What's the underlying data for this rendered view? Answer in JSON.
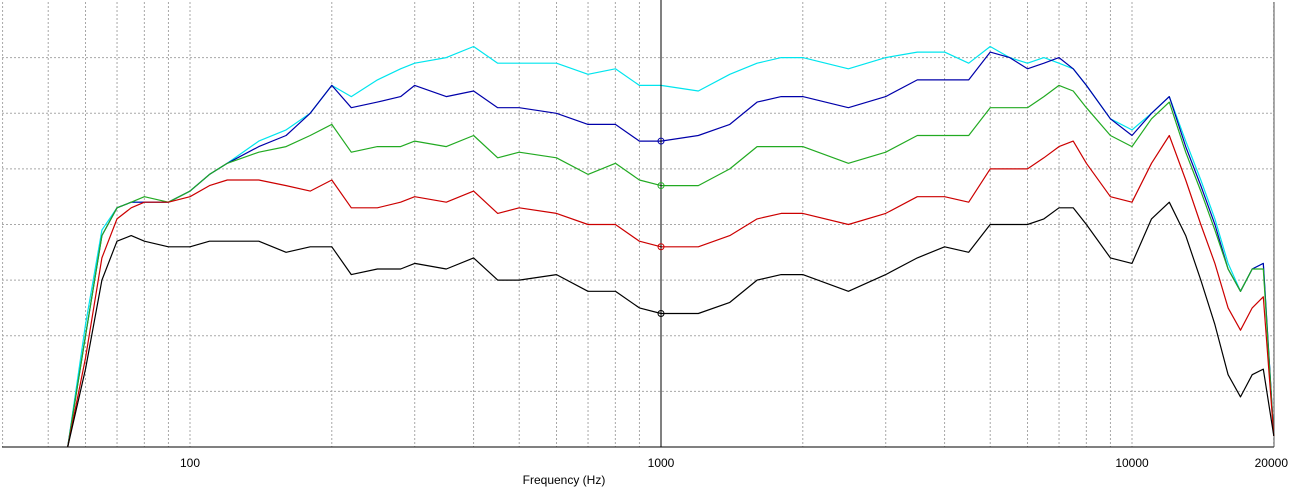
{
  "chart_data": {
    "type": "line",
    "title": "",
    "xlabel": "Frequency (Hz)",
    "ylabel": "",
    "x_scale": "log",
    "xlim": [
      40,
      20000
    ],
    "ylim": [
      0,
      8
    ],
    "grid": true,
    "cursor_x": 1000,
    "x_tick_labels": [
      {
        "value": 100,
        "label": "100"
      },
      {
        "value": 1000,
        "label": "1000"
      },
      {
        "value": 10000,
        "label": "10000"
      },
      {
        "value": 20000,
        "label": "20000"
      }
    ],
    "series": [
      {
        "color": "#00e5ee",
        "cursor_marker": false,
        "x": [
          55,
          60,
          65,
          70,
          75,
          80,
          90,
          100,
          110,
          120,
          140,
          160,
          180,
          200,
          220,
          250,
          280,
          300,
          350,
          400,
          450,
          500,
          600,
          700,
          800,
          900,
          1000,
          1200,
          1400,
          1600,
          1800,
          2000,
          2500,
          3000,
          3500,
          4000,
          4500,
          5000,
          5500,
          6000,
          6500,
          7000,
          7500,
          8000,
          9000,
          10000,
          11000,
          12000,
          13000,
          14000,
          15000,
          16000,
          17000,
          18000,
          19000,
          20000
        ],
        "values": [
          -0.3,
          2.2,
          3.9,
          4.3,
          4.4,
          4.4,
          4.4,
          4.6,
          4.9,
          5.1,
          5.5,
          5.7,
          6.0,
          6.5,
          6.3,
          6.6,
          6.8,
          6.9,
          7.0,
          7.2,
          6.9,
          6.9,
          6.9,
          6.7,
          6.8,
          6.5,
          6.5,
          6.4,
          6.7,
          6.9,
          7.0,
          7.0,
          6.8,
          7.0,
          7.1,
          7.1,
          6.9,
          7.2,
          7.0,
          6.9,
          7.0,
          6.9,
          6.8,
          6.5,
          5.9,
          5.7,
          6.0,
          6.3,
          5.5,
          4.8,
          4.1,
          3.3,
          2.8,
          3.2,
          3.3,
          0.2
        ]
      },
      {
        "color": "#0000aa",
        "cursor_marker": true,
        "x": [
          55,
          60,
          65,
          70,
          75,
          80,
          90,
          100,
          110,
          120,
          140,
          160,
          180,
          200,
          220,
          250,
          280,
          300,
          350,
          400,
          450,
          500,
          600,
          700,
          800,
          900,
          1000,
          1200,
          1400,
          1600,
          1800,
          2000,
          2500,
          3000,
          3500,
          4000,
          4500,
          5000,
          5500,
          6000,
          6500,
          7000,
          7500,
          8000,
          9000,
          10000,
          11000,
          12000,
          13000,
          14000,
          15000,
          16000,
          17000,
          18000,
          19000,
          20000
        ],
        "values": [
          -0.2,
          2.0,
          3.8,
          4.3,
          4.4,
          4.4,
          4.4,
          4.6,
          4.9,
          5.1,
          5.4,
          5.6,
          6.0,
          6.5,
          6.1,
          6.2,
          6.3,
          6.5,
          6.3,
          6.4,
          6.1,
          6.1,
          6.0,
          5.8,
          5.8,
          5.5,
          5.5,
          5.6,
          5.8,
          6.2,
          6.3,
          6.3,
          6.1,
          6.3,
          6.6,
          6.6,
          6.6,
          7.1,
          7.0,
          6.8,
          6.9,
          7.0,
          6.8,
          6.5,
          5.9,
          5.6,
          6.0,
          6.3,
          5.4,
          4.7,
          4.0,
          3.2,
          2.8,
          3.2,
          3.3,
          0.2
        ]
      },
      {
        "color": "#22aa22",
        "cursor_marker": true,
        "x": [
          55,
          60,
          65,
          70,
          75,
          80,
          90,
          100,
          110,
          120,
          140,
          160,
          180,
          200,
          220,
          250,
          280,
          300,
          350,
          400,
          450,
          500,
          600,
          700,
          800,
          900,
          1000,
          1200,
          1400,
          1600,
          1800,
          2000,
          2500,
          3000,
          3500,
          4000,
          4500,
          5000,
          5500,
          6000,
          6500,
          7000,
          7500,
          8000,
          9000,
          10000,
          11000,
          12000,
          13000,
          14000,
          15000,
          16000,
          17000,
          18000,
          19000,
          20000
        ],
        "values": [
          -0.2,
          2.0,
          3.8,
          4.3,
          4.4,
          4.5,
          4.4,
          4.6,
          4.9,
          5.1,
          5.3,
          5.4,
          5.6,
          5.8,
          5.3,
          5.4,
          5.4,
          5.5,
          5.4,
          5.6,
          5.2,
          5.3,
          5.2,
          4.9,
          5.1,
          4.8,
          4.7,
          4.7,
          5.0,
          5.4,
          5.4,
          5.4,
          5.1,
          5.3,
          5.6,
          5.6,
          5.6,
          6.1,
          6.1,
          6.1,
          6.3,
          6.5,
          6.4,
          6.1,
          5.6,
          5.4,
          5.9,
          6.2,
          5.3,
          4.6,
          3.9,
          3.2,
          2.8,
          3.2,
          3.2,
          0.2
        ]
      },
      {
        "color": "#cc0000",
        "cursor_marker": true,
        "x": [
          55,
          60,
          65,
          70,
          75,
          80,
          90,
          100,
          110,
          120,
          140,
          160,
          180,
          200,
          220,
          250,
          280,
          300,
          350,
          400,
          450,
          500,
          600,
          700,
          800,
          900,
          1000,
          1200,
          1400,
          1600,
          1800,
          2000,
          2500,
          3000,
          3500,
          4000,
          4500,
          5000,
          5500,
          6000,
          6500,
          7000,
          7500,
          8000,
          9000,
          10000,
          11000,
          12000,
          13000,
          14000,
          15000,
          16000,
          17000,
          18000,
          19000,
          20000
        ],
        "values": [
          -0.5,
          1.6,
          3.4,
          4.1,
          4.3,
          4.4,
          4.4,
          4.5,
          4.7,
          4.8,
          4.8,
          4.7,
          4.6,
          4.8,
          4.3,
          4.3,
          4.4,
          4.5,
          4.4,
          4.6,
          4.2,
          4.3,
          4.2,
          4.0,
          4.0,
          3.7,
          3.6,
          3.6,
          3.8,
          4.1,
          4.2,
          4.2,
          4.0,
          4.2,
          4.5,
          4.5,
          4.4,
          5.0,
          5.0,
          5.0,
          5.2,
          5.4,
          5.5,
          5.1,
          4.5,
          4.4,
          5.1,
          5.6,
          4.8,
          4.0,
          3.3,
          2.5,
          2.1,
          2.5,
          2.7,
          0.2
        ]
      },
      {
        "color": "#000000",
        "cursor_marker": true,
        "x": [
          55,
          60,
          65,
          70,
          75,
          80,
          90,
          100,
          110,
          120,
          140,
          160,
          180,
          200,
          220,
          250,
          280,
          300,
          350,
          400,
          450,
          500,
          600,
          700,
          800,
          900,
          1000,
          1200,
          1400,
          1600,
          1800,
          2000,
          2500,
          3000,
          3500,
          4000,
          4500,
          5000,
          5500,
          6000,
          6500,
          7000,
          7500,
          8000,
          9000,
          10000,
          11000,
          12000,
          13000,
          14000,
          15000,
          16000,
          17000,
          18000,
          19000,
          20000
        ],
        "values": [
          -0.5,
          1.4,
          3.0,
          3.7,
          3.8,
          3.7,
          3.6,
          3.6,
          3.7,
          3.7,
          3.7,
          3.5,
          3.6,
          3.6,
          3.1,
          3.2,
          3.2,
          3.3,
          3.2,
          3.4,
          3.0,
          3.0,
          3.1,
          2.8,
          2.8,
          2.5,
          2.4,
          2.4,
          2.6,
          3.0,
          3.1,
          3.1,
          2.8,
          3.1,
          3.4,
          3.6,
          3.5,
          4.0,
          4.0,
          4.0,
          4.1,
          4.3,
          4.3,
          4.0,
          3.4,
          3.3,
          4.1,
          4.4,
          3.8,
          3.0,
          2.2,
          1.3,
          0.9,
          1.3,
          1.4,
          0.2
        ]
      }
    ]
  }
}
